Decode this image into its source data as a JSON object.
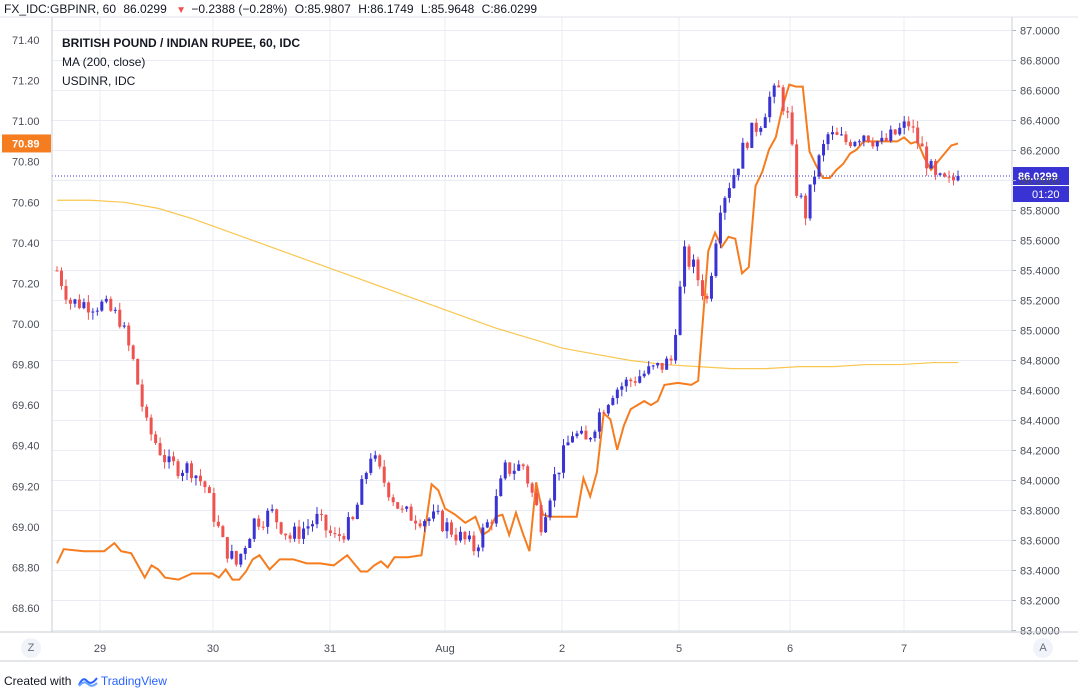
{
  "header": {
    "symbol": "FX_IDC:GBPINR, 60",
    "last": "86.0299",
    "change": "−0.2388 (−0.28%)",
    "o_label": "O:",
    "o_value": "85.9807",
    "h_label": "H:",
    "h_value": "86.1749",
    "l_label": "L:",
    "l_value": "85.9648",
    "c_label": "C:",
    "c_value": "86.0299",
    "down_icon": "triangle-down-icon"
  },
  "legend": {
    "title": "BRITISH POUND / INDIAN RUPEE, 60, IDC",
    "ma": "MA (200, close)",
    "compare": "USDINR, IDC"
  },
  "footer": {
    "created_with": "Created with",
    "brand": "TradingView",
    "logo_icon": "tradingview-logo-icon"
  },
  "corners": {
    "left": "Z",
    "right": "A"
  },
  "colors": {
    "up": "#3a33d4",
    "down": "#ef5350",
    "compare": "#f57c1f",
    "ma": "#f9c650",
    "grid": "#e9ecf2",
    "price_line": "#3a33d4"
  },
  "chart_data": {
    "type": "candlestick",
    "title": "BRITISH POUND / INDIAN RUPEE, 60, IDC",
    "x_ticks": [
      "29",
      "30",
      "31",
      "Aug",
      "2",
      "5",
      "6",
      "7"
    ],
    "right_axis": {
      "ticks": [
        "87.0000",
        "86.8000",
        "86.6000",
        "86.4000",
        "86.2000",
        "86.0000",
        "85.8000",
        "85.6000",
        "85.4000",
        "85.2000",
        "85.0000",
        "84.8000",
        "84.6000",
        "84.4000",
        "84.2000",
        "84.0000",
        "83.8000",
        "83.6000",
        "83.4000",
        "83.2000",
        "83.0000"
      ],
      "range": [
        83.0,
        87.0
      ],
      "last_price_label": "86.0299",
      "countdown_label": "01:20"
    },
    "left_axis": {
      "ticks": [
        "71.40",
        "71.20",
        "71.00",
        "70.80",
        "70.60",
        "70.40",
        "70.20",
        "70.00",
        "69.80",
        "69.60",
        "69.40",
        "69.20",
        "69.00",
        "68.80",
        "68.60"
      ],
      "range": [
        68.5,
        71.5
      ],
      "last_value_label": "70.89"
    },
    "series": [
      {
        "name": "GBPINR",
        "axis": "right",
        "anchors": [
          [
            0,
            85.4
          ],
          [
            3,
            85.19
          ],
          [
            10,
            85.17
          ],
          [
            14,
            85.08
          ],
          [
            17,
            84.79
          ],
          [
            20,
            84.36
          ],
          [
            25,
            84.1
          ],
          [
            30,
            84.08
          ],
          [
            33,
            83.96
          ],
          [
            37,
            83.58
          ],
          [
            40,
            83.44
          ],
          [
            44,
            83.73
          ],
          [
            48,
            83.78
          ],
          [
            52,
            83.62
          ],
          [
            58,
            83.74
          ],
          [
            62,
            83.61
          ],
          [
            66,
            83.72
          ],
          [
            68,
            83.95
          ],
          [
            70,
            84.18
          ],
          [
            72,
            84.05
          ],
          [
            77,
            83.78
          ],
          [
            82,
            83.75
          ],
          [
            85,
            83.74
          ],
          [
            90,
            83.62
          ],
          [
            93,
            83.55
          ],
          [
            97,
            83.76
          ],
          [
            100,
            84.07
          ],
          [
            104,
            84.1
          ],
          [
            108,
            83.72
          ],
          [
            111,
            84.02
          ],
          [
            115,
            84.32
          ],
          [
            118,
            84.25
          ],
          [
            121,
            84.45
          ],
          [
            124,
            84.6
          ],
          [
            127,
            84.65
          ],
          [
            130,
            84.7
          ],
          [
            134,
            84.75
          ],
          [
            137,
            84.8
          ],
          [
            140,
            85.5
          ],
          [
            142,
            85.42
          ],
          [
            145,
            85.2
          ],
          [
            148,
            85.85
          ],
          [
            151,
            86.05
          ],
          [
            154,
            86.28
          ],
          [
            157,
            86.4
          ],
          [
            159,
            86.55
          ],
          [
            161,
            86.6
          ],
          [
            163,
            86.42
          ],
          [
            165,
            85.94
          ],
          [
            167,
            85.78
          ],
          [
            169,
            86.05
          ],
          [
            172,
            86.3
          ],
          [
            176,
            86.26
          ],
          [
            180,
            86.32
          ],
          [
            184,
            86.24
          ],
          [
            187,
            86.31
          ],
          [
            190,
            86.38
          ],
          [
            193,
            86.2
          ],
          [
            196,
            86.0
          ],
          [
            199,
            85.98
          ],
          [
            201,
            86.03
          ]
        ],
        "noise_amplitude": 0.13,
        "last_close": 86.0299
      },
      {
        "name": "USDINR, IDC",
        "axis": "left",
        "points": [
          [
            0,
            68.82
          ],
          [
            2,
            68.89
          ],
          [
            8,
            68.88
          ],
          [
            14,
            68.88
          ],
          [
            17,
            68.92
          ],
          [
            19,
            68.88
          ],
          [
            22,
            68.87
          ],
          [
            24,
            68.81
          ],
          [
            26,
            68.75
          ],
          [
            28,
            68.81
          ],
          [
            30,
            68.79
          ],
          [
            32,
            68.75
          ],
          [
            36,
            68.74
          ],
          [
            40,
            68.77
          ],
          [
            46,
            68.77
          ],
          [
            48,
            68.75
          ],
          [
            50,
            68.79
          ],
          [
            52,
            68.74
          ],
          [
            54,
            68.74
          ],
          [
            56,
            68.78
          ],
          [
            58,
            68.84
          ],
          [
            60,
            68.86
          ],
          [
            63,
            68.79
          ],
          [
            66,
            68.84
          ],
          [
            70,
            68.84
          ],
          [
            74,
            68.82
          ],
          [
            78,
            68.82
          ],
          [
            82,
            68.81
          ],
          [
            86,
            68.86
          ],
          [
            88,
            68.82
          ],
          [
            90,
            68.78
          ],
          [
            92,
            68.78
          ],
          [
            94,
            68.81
          ],
          [
            96,
            68.83
          ],
          [
            98,
            68.8
          ],
          [
            100,
            68.85
          ],
          [
            104,
            68.85
          ],
          [
            108,
            68.86
          ],
          [
            111,
            69.21
          ],
          [
            113,
            69.18
          ],
          [
            115,
            69.09
          ],
          [
            118,
            69.06
          ],
          [
            121,
            69.02
          ],
          [
            124,
            69.05
          ],
          [
            126,
            68.96
          ],
          [
            128,
            68.98
          ],
          [
            130,
            69.05
          ],
          [
            132,
            69.06
          ],
          [
            134,
            68.96
          ],
          [
            136,
            69.07
          ],
          [
            138,
            68.97
          ],
          [
            140,
            68.88
          ],
          [
            142,
            69.22
          ],
          [
            144,
            69.06
          ],
          [
            146,
            69.05
          ],
          [
            150,
            69.05
          ],
          [
            154,
            69.05
          ],
          [
            156,
            69.24
          ],
          [
            158,
            69.15
          ],
          [
            160,
            69.27
          ],
          [
            162,
            69.56
          ],
          [
            164,
            69.53
          ],
          [
            166,
            69.38
          ],
          [
            168,
            69.5
          ],
          [
            170,
            69.58
          ],
          [
            172,
            69.6
          ],
          [
            174,
            69.62
          ],
          [
            176,
            69.6
          ],
          [
            178,
            69.62
          ],
          [
            180,
            69.7
          ],
          [
            184,
            69.71
          ],
          [
            188,
            69.7
          ],
          [
            190,
            69.72
          ],
          [
            193,
            70.36
          ],
          [
            195,
            70.45
          ],
          [
            197,
            70.38
          ],
          [
            199,
            70.43
          ],
          [
            201,
            70.42
          ],
          [
            203,
            70.25
          ],
          [
            205,
            70.28
          ],
          [
            207,
            70.68
          ],
          [
            209,
            70.75
          ],
          [
            211,
            70.86
          ],
          [
            213,
            70.92
          ],
          [
            215,
            71.07
          ],
          [
            217,
            71.18
          ],
          [
            219,
            71.17
          ],
          [
            221,
            71.17
          ],
          [
            223,
            70.85
          ],
          [
            225,
            70.78
          ],
          [
            227,
            70.72
          ],
          [
            229,
            70.72
          ],
          [
            231,
            70.76
          ],
          [
            233,
            70.79
          ],
          [
            235,
            70.84
          ],
          [
            237,
            70.86
          ],
          [
            239,
            70.9
          ],
          [
            241,
            70.9
          ],
          [
            245,
            70.9
          ],
          [
            249,
            70.9
          ],
          [
            251,
            70.92
          ],
          [
            253,
            70.89
          ],
          [
            255,
            70.9
          ],
          [
            257,
            70.82
          ],
          [
            259,
            70.76
          ],
          [
            261,
            70.8
          ],
          [
            263,
            70.84
          ],
          [
            265,
            70.88
          ],
          [
            267,
            70.89
          ]
        ]
      },
      {
        "name": "MA (200, close)",
        "axis": "left",
        "points": [
          [
            0,
            70.61
          ],
          [
            10,
            70.61
          ],
          [
            20,
            70.6
          ],
          [
            30,
            70.57
          ],
          [
            40,
            70.52
          ],
          [
            50,
            70.46
          ],
          [
            60,
            70.4
          ],
          [
            70,
            70.34
          ],
          [
            80,
            70.28
          ],
          [
            90,
            70.22
          ],
          [
            100,
            70.16
          ],
          [
            110,
            70.1
          ],
          [
            120,
            70.04
          ],
          [
            130,
            69.98
          ],
          [
            140,
            69.93
          ],
          [
            150,
            69.88
          ],
          [
            160,
            69.85
          ],
          [
            170,
            69.82
          ],
          [
            180,
            69.8
          ],
          [
            190,
            69.79
          ],
          [
            200,
            69.78
          ],
          [
            210,
            69.78
          ],
          [
            220,
            69.79
          ],
          [
            230,
            69.79
          ],
          [
            240,
            69.8
          ],
          [
            250,
            69.8
          ],
          [
            260,
            69.81
          ],
          [
            267,
            69.81
          ]
        ]
      }
    ],
    "grid": true
  }
}
